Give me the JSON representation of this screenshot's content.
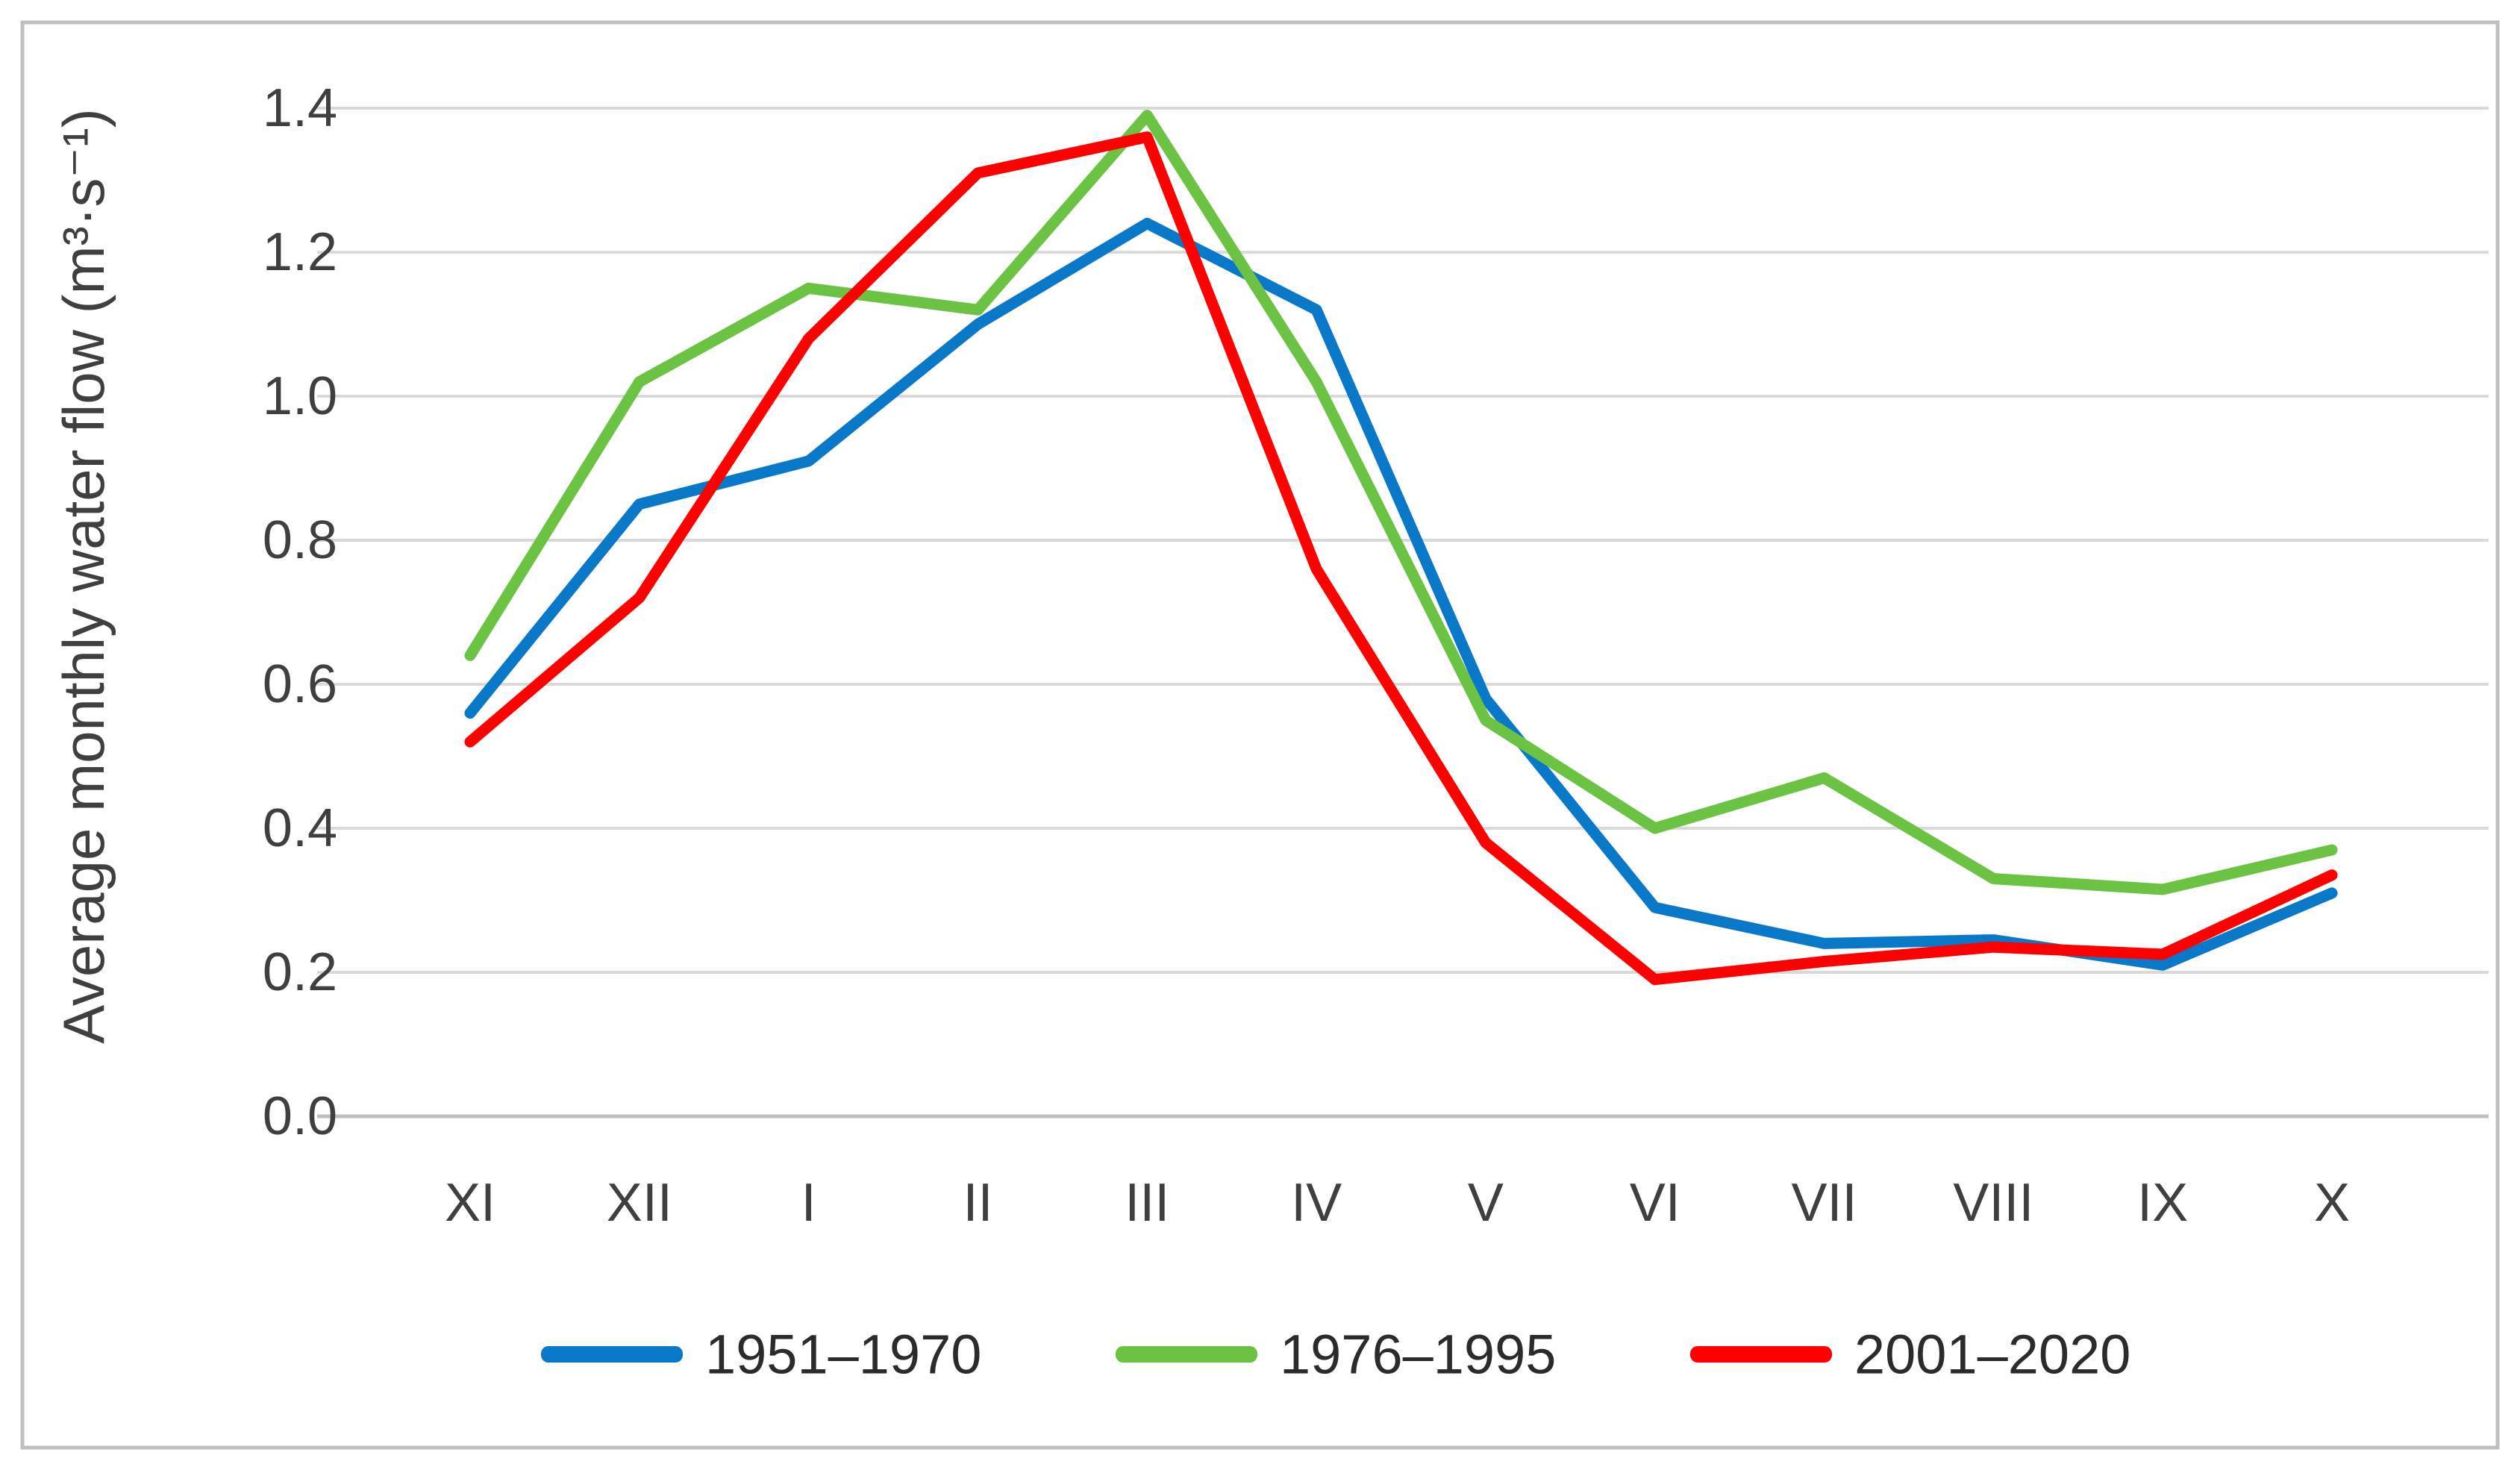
{
  "chart_data": {
    "type": "line",
    "title": "",
    "ylabel": "Average monthly water flow (m³·s⁻¹)",
    "xlabel": "",
    "ylim": [
      0.0,
      1.4
    ],
    "ytick_step": 0.2,
    "ytick_labels": [
      "1.4",
      "1.2",
      "1.0",
      "0.8",
      "0.6",
      "0.4",
      "0.2",
      "0.0"
    ],
    "categories": [
      "XI",
      "XII",
      "I",
      "II",
      "III",
      "IV",
      "V",
      "VI",
      "VII",
      "VIII",
      "IX",
      "X"
    ],
    "grid": "horizontal",
    "legend_position": "bottom",
    "series": [
      {
        "name": "1951–1970",
        "color": "#0A78C8",
        "values": [
          0.56,
          0.85,
          0.91,
          1.1,
          1.24,
          1.12,
          0.58,
          0.29,
          0.24,
          0.245,
          0.21,
          0.31
        ]
      },
      {
        "name": "1976–1995",
        "color": "#6CC243",
        "values": [
          0.64,
          1.02,
          1.15,
          1.12,
          1.39,
          1.02,
          0.55,
          0.4,
          0.47,
          0.33,
          0.315,
          0.37
        ]
      },
      {
        "name": "2001–2020",
        "color": "#FF0000",
        "values": [
          0.52,
          0.72,
          1.08,
          1.31,
          1.36,
          0.76,
          0.38,
          0.19,
          0.215,
          0.235,
          0.225,
          0.335
        ]
      }
    ],
    "colors": {
      "gridline": "#D9D9D9",
      "axis_line": "#BFBFBF",
      "text": "#3F3F3F",
      "frame_border": "#BFBFBF",
      "background": "#FFFFFF"
    }
  }
}
